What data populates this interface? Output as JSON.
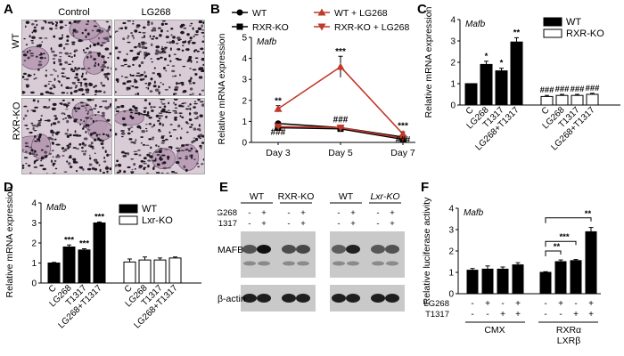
{
  "panels": {
    "A": {
      "letter": "A",
      "col_headers": [
        "Control",
        "LG268"
      ],
      "row_headers": [
        "WT",
        "RXR-KO"
      ]
    },
    "E": {
      "letter": "E",
      "group_labels": [
        "WT",
        "RXR-KO",
        "WT",
        "Lxr-KO"
      ],
      "treatment_names": [
        "LG268",
        "T1317"
      ],
      "lg268_signs": [
        "-",
        "+",
        "-",
        "+",
        "-",
        "+",
        "-",
        "+"
      ],
      "t1317_signs": [
        "-",
        "+",
        "-",
        "+",
        "-",
        "+",
        "-",
        "+"
      ],
      "bands": [
        "MAFB",
        "β-actin"
      ]
    }
  },
  "chart_data": [
    {
      "panel": "B",
      "type": "line",
      "title": "Mafb",
      "ylabel": "Relative mRNA expression",
      "ylim": [
        0,
        5
      ],
      "yticks": [
        0,
        1,
        2,
        3,
        4,
        5
      ],
      "categories": [
        "Day 3",
        "Day 5",
        "Day 7"
      ],
      "legend": [
        "WT",
        "RXR-KO",
        "WT + LG268",
        "RXR-KO + LG268"
      ],
      "series": [
        {
          "name": "WT",
          "values": [
            0.9,
            0.7,
            0.25
          ],
          "color": "#000000",
          "marker": "circle"
        },
        {
          "name": "RXR-KO",
          "values": [
            0.7,
            0.65,
            0.15
          ],
          "color": "#000000",
          "marker": "square"
        },
        {
          "name": "WT + LG268",
          "values": [
            1.6,
            3.6,
            0.4
          ],
          "errors": [
            0.15,
            0.5,
            0.1
          ],
          "color": "#c0392b",
          "marker": "triangle-up"
        },
        {
          "name": "RXR-KO + LG268",
          "values": [
            0.75,
            0.7,
            0.2
          ],
          "color": "#c0392b",
          "marker": "triangle-down"
        }
      ],
      "annotations": [
        {
          "category": "Day 3",
          "text": "**",
          "y": 1.85
        },
        {
          "category": "Day 3",
          "text": "###",
          "y": 0.35
        },
        {
          "category": "Day 5",
          "text": "***",
          "y": 4.2
        },
        {
          "category": "Day 5",
          "text": "###",
          "y": 0.95
        },
        {
          "category": "Day 7",
          "text": "***",
          "y": 0.65
        },
        {
          "category": "Day 7",
          "text": "###",
          "y": 0.0
        }
      ]
    },
    {
      "panel": "C",
      "type": "bar",
      "title": "Mafb",
      "ylabel": "Relative mRNA expression",
      "ylim": [
        0,
        4
      ],
      "yticks": [
        0,
        1,
        2,
        3,
        4
      ],
      "categories": [
        "C",
        "LG268",
        "T1317",
        "LG268+T1317"
      ],
      "legend": [
        "WT",
        "RXR-KO"
      ],
      "series": [
        {
          "name": "WT",
          "values": [
            1.0,
            1.9,
            1.6,
            2.95
          ],
          "errors": [
            0,
            0.15,
            0.12,
            0.2
          ],
          "fill": "#000000",
          "marks": [
            "",
            "*",
            "*",
            "**"
          ]
        },
        {
          "name": "RXR-KO",
          "values": [
            0.4,
            0.45,
            0.45,
            0.5
          ],
          "errors": [
            0.05,
            0.05,
            0.05,
            0.05
          ],
          "fill": "#ffffff",
          "marks": [
            "###",
            "###",
            "###",
            "###"
          ]
        }
      ]
    },
    {
      "panel": "D",
      "type": "bar",
      "title": "Mafb",
      "ylabel": "Relative mRNA expression",
      "ylim": [
        0,
        4
      ],
      "yticks": [
        0,
        1,
        2,
        3,
        4
      ],
      "categories": [
        "C",
        "LG268",
        "T1317",
        "LG268+T1317"
      ],
      "legend": [
        "WT",
        "Lxr-KO"
      ],
      "series": [
        {
          "name": "WT",
          "values": [
            1.0,
            1.8,
            1.65,
            3.0
          ],
          "errors": [
            0.03,
            0.1,
            0.06,
            0.05
          ],
          "fill": "#000000",
          "marks": [
            "",
            "***",
            "***",
            "***"
          ]
        },
        {
          "name": "Lxr-KO",
          "values": [
            1.05,
            1.15,
            1.15,
            1.25
          ],
          "errors": [
            0.15,
            0.15,
            0.1,
            0.05
          ],
          "fill": "#ffffff",
          "marks": [
            "",
            "",
            "",
            ""
          ]
        }
      ]
    },
    {
      "panel": "F",
      "type": "bar",
      "title": "Mafb",
      "ylabel": "Relative luciferase activity",
      "ylim": [
        0,
        4
      ],
      "yticks": [
        0,
        1,
        2,
        3,
        4
      ],
      "row_labels": [
        "LG268",
        "T1317"
      ],
      "lg268_signs": [
        "-",
        "+",
        "-",
        "+",
        "-",
        "+",
        "-",
        "+"
      ],
      "t1317_signs": [
        "-",
        "-",
        "+",
        "+",
        "-",
        "-",
        "+",
        "+"
      ],
      "group_labels": [
        "CMX",
        "RXRα\nLXRβ"
      ],
      "values": [
        1.1,
        1.15,
        1.15,
        1.35,
        1.0,
        1.5,
        1.55,
        2.9
      ],
      "errors": [
        0.08,
        0.15,
        0.1,
        0.1,
        0.03,
        0.08,
        0.05,
        0.2
      ],
      "sig": [
        {
          "from": 4,
          "to": 5,
          "text": "**"
        },
        {
          "from": 4,
          "to": 6,
          "text": "***"
        },
        {
          "from": 4,
          "to": 7,
          "text": "**"
        }
      ]
    }
  ]
}
